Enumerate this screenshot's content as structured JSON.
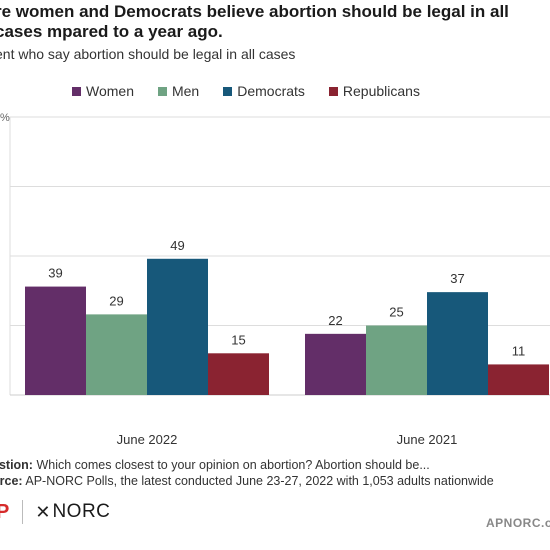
{
  "title": "re women and Democrats believe abortion should be legal in all cases mpared to a year ago.",
  "subtitle": "cent who say abortion should be legal in all cases",
  "colors": {
    "women": "#632e68",
    "men": "#6fa383",
    "democrats": "#17587a",
    "republicans": "#8a2331",
    "grid": "#dddddd"
  },
  "chart_data": {
    "type": "bar",
    "title": "re women and Democrats believe abortion should be legal in all cases mpared to a year ago.",
    "subtitle": "cent who say abortion should be legal in all cases",
    "ylabel": "",
    "xlabel": "",
    "ylim": [
      0,
      100
    ],
    "categories": [
      "June 2022",
      "June 2021"
    ],
    "series": [
      {
        "name": "Women",
        "values": [
          39,
          22
        ]
      },
      {
        "name": "Men",
        "values": [
          29,
          25
        ]
      },
      {
        "name": "Democrats",
        "values": [
          49,
          37
        ]
      },
      {
        "name": "Republicans",
        "values": [
          15,
          11
        ]
      }
    ],
    "grid": true,
    "legend": "top"
  },
  "notes": {
    "question_label": "estion:",
    "question_text": " Which comes closest to your opinion on abortion? Abortion should be...",
    "source_label": "urce:",
    "source_text": " AP-NORC Polls, the latest conducted June 23-27, 2022 with 1,053 adults nationwide"
  },
  "logos": {
    "ap": "P",
    "norc": "NORC"
  },
  "site": "APNORC.o"
}
